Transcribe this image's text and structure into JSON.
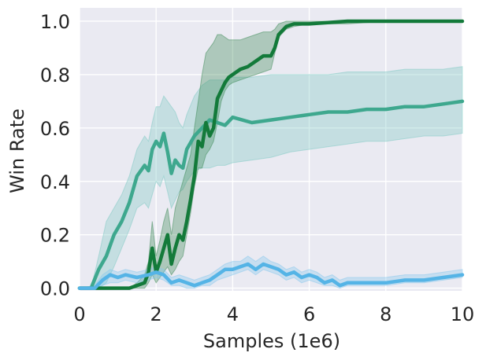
{
  "chart_data": {
    "type": "line",
    "title": "",
    "xlabel": "Samples (1e6)",
    "ylabel": "Win Rate",
    "xlim": [
      0,
      10
    ],
    "ylim": [
      -0.01,
      1.05
    ],
    "xticks": [
      "0",
      "2",
      "4",
      "6",
      "8",
      "10"
    ],
    "yticks": [
      "0.0",
      "0.2",
      "0.4",
      "0.6",
      "0.8",
      "1.0"
    ],
    "grid": true,
    "legend": "none",
    "colors": {
      "background": "#eaeaf2",
      "grid": "#ffffff",
      "dark_green": "#137a3a",
      "teal": "#3ea88e",
      "blue": "#55b4e6",
      "dark_green_band": "#3c8a55",
      "teal_band": "#7ec9c3",
      "blue_band": "#86c8ee"
    },
    "series": [
      {
        "color": "#137a3a",
        "x": [
          0,
          0.5,
          1.0,
          1.3,
          1.5,
          1.7,
          1.8,
          1.9,
          2.0,
          2.1,
          2.2,
          2.3,
          2.4,
          2.5,
          2.6,
          2.7,
          2.8,
          2.9,
          3.0,
          3.1,
          3.2,
          3.3,
          3.4,
          3.5,
          3.6,
          3.7,
          3.8,
          3.9,
          4.0,
          4.2,
          4.4,
          4.6,
          4.8,
          5.0,
          5.1,
          5.2,
          5.4,
          5.6,
          6.0,
          7.0,
          8.0,
          9.0,
          10.0
        ],
        "y": [
          0.0,
          0.0,
          0.0,
          0.0,
          0.01,
          0.02,
          0.06,
          0.15,
          0.06,
          0.1,
          0.15,
          0.2,
          0.09,
          0.15,
          0.2,
          0.18,
          0.25,
          0.33,
          0.42,
          0.55,
          0.53,
          0.62,
          0.57,
          0.6,
          0.71,
          0.74,
          0.77,
          0.79,
          0.8,
          0.82,
          0.83,
          0.85,
          0.87,
          0.87,
          0.9,
          0.95,
          0.98,
          0.99,
          0.99,
          1.0,
          1.0,
          1.0,
          1.0
        ],
        "lower": [
          0.0,
          0.0,
          0.0,
          0.0,
          0.0,
          0.0,
          0.02,
          0.05,
          0.02,
          0.04,
          0.06,
          0.08,
          0.05,
          0.07,
          0.1,
          0.12,
          0.2,
          0.28,
          0.38,
          0.45,
          0.45,
          0.5,
          0.52,
          0.55,
          0.62,
          0.7,
          0.74,
          0.76,
          0.77,
          0.78,
          0.79,
          0.8,
          0.81,
          0.82,
          0.88,
          0.94,
          0.97,
          0.98,
          0.99,
          0.99,
          1.0,
          1.0,
          1.0
        ],
        "upper": [
          0.0,
          0.0,
          0.0,
          0.0,
          0.02,
          0.05,
          0.1,
          0.25,
          0.12,
          0.18,
          0.25,
          0.3,
          0.2,
          0.3,
          0.35,
          0.4,
          0.45,
          0.5,
          0.6,
          0.7,
          0.8,
          0.88,
          0.9,
          0.92,
          0.95,
          0.95,
          0.94,
          0.93,
          0.93,
          0.93,
          0.94,
          0.95,
          0.96,
          0.96,
          0.97,
          0.99,
          1.0,
          1.0,
          1.0,
          1.0,
          1.0,
          1.0,
          1.0
        ]
      },
      {
        "color": "#3ea88e",
        "x": [
          0,
          0.3,
          0.5,
          0.7,
          0.9,
          1.1,
          1.3,
          1.5,
          1.7,
          1.8,
          1.9,
          2.0,
          2.1,
          2.2,
          2.3,
          2.4,
          2.5,
          2.6,
          2.7,
          2.8,
          3.0,
          3.2,
          3.4,
          3.6,
          3.8,
          4.0,
          4.5,
          5.0,
          5.5,
          6.0,
          6.5,
          7.0,
          7.5,
          8.0,
          8.5,
          9.0,
          9.5,
          10.0
        ],
        "y": [
          0.0,
          0.0,
          0.07,
          0.12,
          0.2,
          0.25,
          0.32,
          0.42,
          0.46,
          0.44,
          0.52,
          0.55,
          0.53,
          0.58,
          0.51,
          0.43,
          0.48,
          0.46,
          0.45,
          0.52,
          0.57,
          0.6,
          0.63,
          0.62,
          0.61,
          0.64,
          0.62,
          0.63,
          0.64,
          0.65,
          0.66,
          0.66,
          0.67,
          0.67,
          0.68,
          0.68,
          0.69,
          0.7
        ],
        "lower": [
          0.0,
          0.0,
          0.0,
          0.02,
          0.08,
          0.15,
          0.22,
          0.3,
          0.32,
          0.3,
          0.35,
          0.4,
          0.38,
          0.42,
          0.36,
          0.3,
          0.33,
          0.36,
          0.37,
          0.4,
          0.44,
          0.45,
          0.45,
          0.46,
          0.46,
          0.47,
          0.48,
          0.49,
          0.51,
          0.52,
          0.53,
          0.54,
          0.55,
          0.55,
          0.56,
          0.57,
          0.57,
          0.58
        ],
        "upper": [
          0.0,
          0.0,
          0.12,
          0.25,
          0.3,
          0.35,
          0.42,
          0.52,
          0.57,
          0.55,
          0.62,
          0.68,
          0.68,
          0.72,
          0.7,
          0.68,
          0.66,
          0.62,
          0.6,
          0.65,
          0.72,
          0.76,
          0.78,
          0.78,
          0.78,
          0.79,
          0.79,
          0.8,
          0.8,
          0.8,
          0.8,
          0.81,
          0.81,
          0.81,
          0.82,
          0.82,
          0.82,
          0.83
        ]
      },
      {
        "color": "#55b4e6",
        "x": [
          0,
          0.4,
          0.6,
          0.8,
          1.0,
          1.2,
          1.5,
          1.8,
          2.0,
          2.2,
          2.4,
          2.6,
          2.8,
          3.0,
          3.2,
          3.4,
          3.6,
          3.8,
          4.0,
          4.2,
          4.4,
          4.6,
          4.8,
          5.0,
          5.2,
          5.4,
          5.6,
          5.8,
          6.0,
          6.2,
          6.4,
          6.6,
          6.8,
          7.0,
          7.5,
          8.0,
          8.5,
          9.0,
          9.5,
          10.0
        ],
        "y": [
          0.0,
          0.0,
          0.03,
          0.05,
          0.04,
          0.05,
          0.04,
          0.05,
          0.06,
          0.05,
          0.02,
          0.03,
          0.02,
          0.01,
          0.02,
          0.03,
          0.05,
          0.07,
          0.07,
          0.08,
          0.09,
          0.07,
          0.09,
          0.08,
          0.07,
          0.05,
          0.06,
          0.04,
          0.05,
          0.04,
          0.02,
          0.03,
          0.01,
          0.02,
          0.02,
          0.02,
          0.03,
          0.03,
          0.04,
          0.05
        ],
        "lower": [
          0.0,
          0.0,
          0.01,
          0.02,
          0.02,
          0.03,
          0.02,
          0.03,
          0.04,
          0.03,
          0.01,
          0.01,
          0.0,
          0.0,
          0.01,
          0.01,
          0.03,
          0.04,
          0.05,
          0.06,
          0.07,
          0.05,
          0.07,
          0.06,
          0.05,
          0.03,
          0.04,
          0.02,
          0.03,
          0.02,
          0.01,
          0.01,
          0.0,
          0.01,
          0.01,
          0.01,
          0.02,
          0.02,
          0.03,
          0.04
        ],
        "upper": [
          0.0,
          0.01,
          0.05,
          0.07,
          0.06,
          0.07,
          0.06,
          0.07,
          0.08,
          0.07,
          0.04,
          0.05,
          0.04,
          0.03,
          0.04,
          0.05,
          0.07,
          0.09,
          0.1,
          0.1,
          0.12,
          0.1,
          0.12,
          0.1,
          0.09,
          0.07,
          0.08,
          0.06,
          0.07,
          0.06,
          0.04,
          0.05,
          0.03,
          0.04,
          0.04,
          0.04,
          0.05,
          0.05,
          0.06,
          0.07
        ]
      }
    ]
  }
}
